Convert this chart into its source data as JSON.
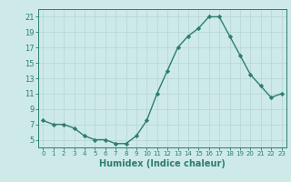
{
  "x": [
    0,
    1,
    2,
    3,
    4,
    5,
    6,
    7,
    8,
    9,
    10,
    11,
    12,
    13,
    14,
    15,
    16,
    17,
    18,
    19,
    20,
    21,
    22,
    23
  ],
  "y": [
    7.5,
    7.0,
    7.0,
    6.5,
    5.5,
    5.0,
    5.0,
    4.5,
    4.5,
    5.5,
    7.5,
    11.0,
    14.0,
    17.0,
    18.5,
    19.5,
    21.0,
    21.0,
    18.5,
    16.0,
    13.5,
    12.0,
    10.5,
    11.0
  ],
  "xlabel": "Humidex (Indice chaleur)",
  "ylabel": "",
  "ylim": [
    4,
    22
  ],
  "xlim_min": -0.5,
  "xlim_max": 23.5,
  "yticks": [
    5,
    7,
    9,
    11,
    13,
    15,
    17,
    19,
    21
  ],
  "xtick_labels": [
    "0",
    "1",
    "2",
    "3",
    "4",
    "5",
    "6",
    "7",
    "8",
    "9",
    "10",
    "11",
    "12",
    "13",
    "14",
    "15",
    "16",
    "17",
    "18",
    "19",
    "20",
    "21",
    "22",
    "23"
  ],
  "line_color": "#2e7d6e",
  "marker_color": "#2e7d6e",
  "bg_color": "#cdeae8",
  "grid_color": "#b8d8d6",
  "axis_color": "#2e7d6e",
  "tick_color": "#2e7d6e",
  "label_color": "#2e7d6e",
  "xlabel_fontsize": 7,
  "ytick_fontsize": 6,
  "xtick_fontsize": 5
}
